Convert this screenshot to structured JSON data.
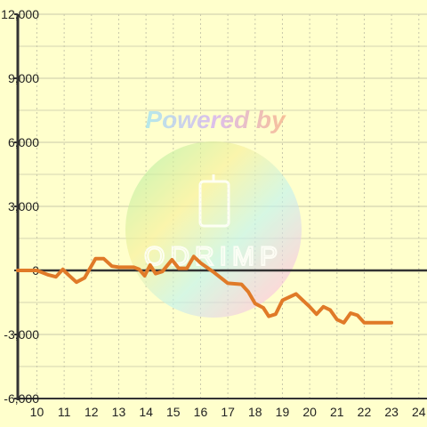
{
  "colors": {
    "background": "#ffffcc",
    "grid": "#c8c8aa",
    "axis": "#333333",
    "zero_line": "#333333",
    "series": "#e07a28"
  },
  "watermark": {
    "text": "Powered by",
    "logo_text": "ODRIMP",
    "icon": "phone-icon"
  },
  "chart_data": {
    "type": "line",
    "grid": true,
    "xlim": [
      9.3,
      24.3
    ],
    "ylim": [
      -6000,
      12000
    ],
    "x_ticks": [
      10,
      11,
      12,
      13,
      14,
      15,
      16,
      17,
      18,
      19,
      20,
      21,
      22,
      23,
      24
    ],
    "x_tick_labels": [
      "10",
      "11",
      "12",
      "13",
      "14",
      "15",
      "16",
      "17",
      "18",
      "19",
      "20",
      "21",
      "22",
      "23",
      "24"
    ],
    "y_ticks": [
      -6000,
      -3000,
      0,
      3000,
      6000,
      9000,
      12000
    ],
    "y_tick_labels": [
      "-6,000",
      "-3,000",
      "0",
      "3,000",
      "6,000",
      "9,000",
      "12,000"
    ],
    "series": [
      {
        "x": [
          9.3,
          10.0,
          10.4,
          10.7,
          10.95,
          11.15,
          11.45,
          11.75,
          12.15,
          12.45,
          12.75,
          13.0,
          13.3,
          13.55,
          13.75,
          13.95,
          14.15,
          14.35,
          14.6,
          14.95,
          15.2,
          15.5,
          15.75,
          16.0,
          16.5,
          17.0,
          17.5,
          17.75,
          18.0,
          18.3,
          18.5,
          18.75,
          19.0,
          19.5,
          20.0,
          20.25,
          20.5,
          20.75,
          21.0,
          21.25,
          21.5,
          21.75,
          22.0,
          22.5,
          23.0
        ],
        "y": [
          0,
          0,
          -200,
          -300,
          50,
          -200,
          -550,
          -350,
          550,
          550,
          200,
          150,
          150,
          150,
          50,
          -250,
          250,
          -150,
          -50,
          500,
          100,
          100,
          650,
          350,
          -100,
          -600,
          -650,
          -1000,
          -1550,
          -1750,
          -2150,
          -2050,
          -1400,
          -1100,
          -1700,
          -2050,
          -1700,
          -1850,
          -2300,
          -2450,
          -2000,
          -2100,
          -2450,
          -2450,
          -2450
        ]
      }
    ]
  }
}
